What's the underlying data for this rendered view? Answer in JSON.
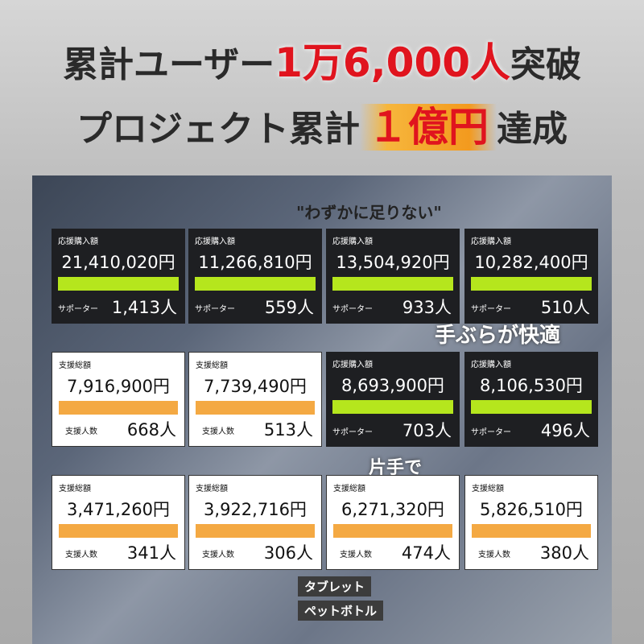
{
  "header": {
    "line1_pre": "累計ユーザー",
    "line1_highlight": "1万6,000人",
    "line1_post": "突破",
    "line2_pre": "プロジェクト累計",
    "line2_highlight": "１億円",
    "line2_post": "達成"
  },
  "overlay_texts": {
    "quote": "\"わずかに足りない\"",
    "hands_free": "手ぶらが快適",
    "one_hand": "片手で",
    "tablet": "タブレット",
    "bottle": "ペットボトル"
  },
  "colors": {
    "highlight_red": "#e0141e",
    "bar_green": "#b5e61d",
    "bar_orange": "#f4a943"
  },
  "cards": [
    {
      "style": "dark",
      "label": "応援購入額",
      "amount": "21,410,020円",
      "count_label": "サポーター",
      "count": "1,413人"
    },
    {
      "style": "dark",
      "label": "応援購入額",
      "amount": "11,266,810円",
      "count_label": "サポーター",
      "count": "559人"
    },
    {
      "style": "dark",
      "label": "応援購入額",
      "amount": "13,504,920円",
      "count_label": "サポーター",
      "count": "933人"
    },
    {
      "style": "dark",
      "label": "応援購入額",
      "amount": "10,282,400円",
      "count_label": "サポーター",
      "count": "510人"
    },
    {
      "style": "light",
      "label": "支援総額",
      "amount": "7,916,900円",
      "count_label": "支援人数",
      "count": "668人"
    },
    {
      "style": "light",
      "label": "支援総額",
      "amount": "7,739,490円",
      "count_label": "支援人数",
      "count": "513人"
    },
    {
      "style": "dark",
      "label": "応援購入額",
      "amount": "8,693,900円",
      "count_label": "サポーター",
      "count": "703人"
    },
    {
      "style": "dark",
      "label": "応援購入額",
      "amount": "8,106,530円",
      "count_label": "サポーター",
      "count": "496人"
    },
    {
      "style": "light",
      "label": "支援総額",
      "amount": "3,471,260円",
      "count_label": "支援人数",
      "count": "341人"
    },
    {
      "style": "light",
      "label": "支援総額",
      "amount": "3,922,716円",
      "count_label": "支援人数",
      "count": "306人"
    },
    {
      "style": "light",
      "label": "支援総額",
      "amount": "6,271,320円",
      "count_label": "支援人数",
      "count": "474人"
    },
    {
      "style": "light",
      "label": "支援総額",
      "amount": "5,826,510円",
      "count_label": "支援人数",
      "count": "380人"
    }
  ]
}
